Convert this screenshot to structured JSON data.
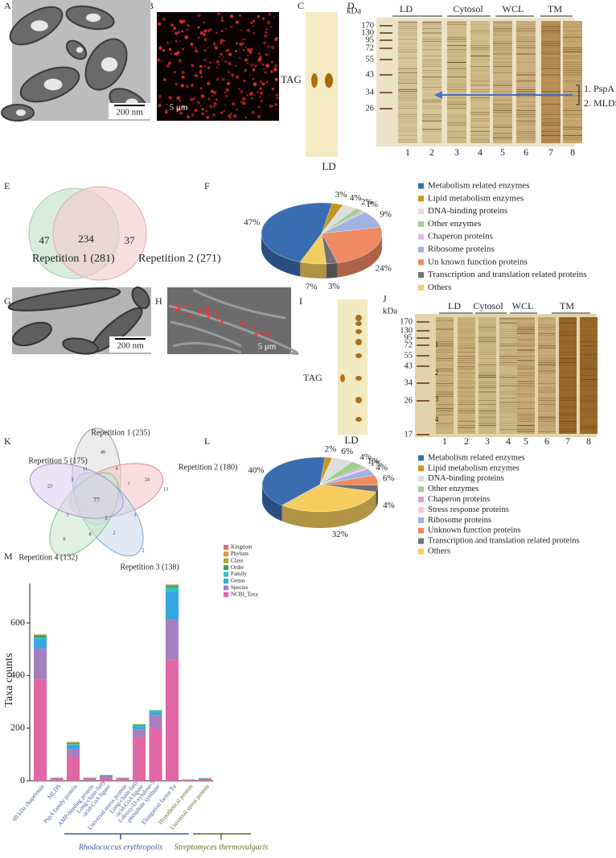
{
  "panel_labels": [
    "A",
    "B",
    "C",
    "D",
    "E",
    "F",
    "G",
    "H",
    "I",
    "J",
    "K",
    "L",
    "M"
  ],
  "panel_a": {
    "scale_bar": "200 nm"
  },
  "panel_b": {
    "scale_bar": "5 μm"
  },
  "panel_c": {
    "spot_label": "TAG",
    "lane_label": "LD"
  },
  "panel_d": {
    "unit": "kDa",
    "markers": [
      170,
      130,
      95,
      72,
      55,
      43,
      34,
      26
    ],
    "lane_groups": [
      "LD",
      "Cytosol",
      "WCL",
      "TM"
    ],
    "lanes": [
      1,
      2,
      3,
      4,
      5,
      6,
      7,
      8
    ],
    "annotations": [
      "1. PspA",
      "2. MLDS"
    ]
  },
  "panel_e": {
    "counts": [
      47,
      234,
      37
    ],
    "sets": [
      "Repetition 1 (281)",
      "Repetition 2 (271)"
    ]
  },
  "panel_g": {
    "scale_bar": "200 nm"
  },
  "panel_h": {
    "scale_bar": "5 μm"
  },
  "panel_i": {
    "spot_label": "TAG",
    "lane_label": "LD"
  },
  "panel_j": {
    "unit": "kDa",
    "markers": [
      170,
      130,
      95,
      72,
      55,
      43,
      34,
      26,
      17
    ],
    "lane_groups": [
      "LD",
      "Cytosol",
      "WCL",
      "TM"
    ],
    "lanes": [
      1,
      2,
      3,
      4,
      5,
      6,
      7,
      8
    ],
    "band_numbers": [
      1,
      2,
      3,
      4
    ]
  },
  "panel_k": {
    "sets": [
      "Repetition 1 (235)",
      "Repetition 2 (180)",
      "Repetition 3 (138)",
      "Repetition 4 (132)",
      "Repetition 5 (175)"
    ],
    "counts": [
      49,
      13,
      2,
      6,
      23,
      77,
      11,
      4,
      24,
      5,
      3,
      7,
      2,
      8,
      1,
      2
    ]
  },
  "chart_data": [
    {
      "type": "pie",
      "categories": [
        "Metabolism related enzymes",
        "Lipid metabolism enzymes",
        "DNA-binding proteins",
        "Other enzymes",
        "Chaperon proteins",
        "Ribosome proteins",
        "Un known function proteins",
        "Transcription and translation related proteins",
        "Others"
      ],
      "values": [
        47,
        3,
        4,
        2,
        1,
        9,
        24,
        3,
        7
      ],
      "value_labels": [
        "47%",
        "3%",
        "4%",
        "2%",
        "1%",
        "9%",
        "24%",
        "3%",
        "7%"
      ],
      "colors": [
        "#3a6db0",
        "#c8961e",
        "#dedede",
        "#9fcf8f",
        "#e4b8e4",
        "#9fb2e0",
        "#ef8a62",
        "#707070",
        "#f5cc60"
      ]
    },
    {
      "type": "pie",
      "categories": [
        "Metabolism related enzymes",
        "Lipid metabolism enzymes",
        "DNA-binding proteins",
        "Other enzymes",
        "Chaperon proteins",
        "Stress response proteins",
        "Ribosome proteins",
        "Unknown function proteins",
        "Transcription and translation related proteins",
        "Others"
      ],
      "values": [
        40,
        2,
        6,
        4,
        1,
        1,
        4,
        6,
        4,
        32
      ],
      "value_labels": [
        "40%",
        "2%",
        "6%",
        "4%",
        "1%",
        "1%",
        "4%",
        "6%",
        "4%",
        "32%"
      ],
      "colors": [
        "#3a6db0",
        "#c8961e",
        "#dedede",
        "#9fcf8f",
        "#c9a6d9",
        "#f4c6d6",
        "#9fb2e0",
        "#ef8a62",
        "#707070",
        "#f5cc60"
      ]
    },
    {
      "type": "bar",
      "stacked": true,
      "ylabel": "Taxa counts",
      "categories": [
        [
          "60 kDa chaperonin"
        ],
        [
          "MLDS"
        ],
        [
          "PspA family protein"
        ],
        [
          "AMP-binding protein"
        ],
        [
          "Long-chain-fatty",
          "-acid-CoA ligase"
        ],
        [
          "Universal stress protein"
        ],
        [
          "Long-chain-fatty",
          "-acid-CoA ligase"
        ],
        [
          "1-deoxy-D-xylulose-5",
          "-phosphate synthase"
        ],
        [
          "Elongation factor Tu"
        ],
        [
          "Hypothetical protein"
        ],
        [
          "Universal stress protein"
        ]
      ],
      "group_labels": [
        "Rhodococcus erythropolis",
        "Streptomyces thermovulgaris"
      ],
      "ylim": [
        0,
        750
      ],
      "yticks": [
        0,
        200,
        400,
        600
      ],
      "series": [
        {
          "name": "NCBI_Taxa",
          "color": "#e066a6",
          "values": [
            385,
            8,
            92,
            8,
            12,
            8,
            165,
            200,
            460,
            3,
            6
          ]
        },
        {
          "name": "Species",
          "color": "#a57fbf",
          "values": [
            118,
            2,
            30,
            2,
            5,
            2,
            30,
            50,
            155,
            1,
            2
          ]
        },
        {
          "name": "Genus",
          "color": "#35a8dd",
          "values": [
            37,
            1,
            15,
            1,
            3,
            1,
            12,
            12,
            105,
            1,
            1
          ]
        },
        {
          "name": "Family",
          "color": "#2ec4c6",
          "values": [
            5,
            0,
            3,
            0,
            1,
            0,
            3,
            3,
            15,
            0,
            0
          ]
        },
        {
          "name": "Order",
          "color": "#3aa35c",
          "values": [
            8,
            1,
            4,
            1,
            1,
            1,
            4,
            3,
            8,
            0,
            1
          ]
        },
        {
          "name": "Class",
          "color": "#a8a838",
          "values": [
            2,
            0,
            2,
            0,
            0,
            0,
            1,
            0,
            2,
            0,
            0
          ]
        },
        {
          "name": "Phylum",
          "color": "#e8923a",
          "values": [
            1,
            0,
            1,
            0,
            0,
            0,
            0,
            0,
            1,
            0,
            0
          ]
        },
        {
          "name": "Kingdom",
          "color": "#e8706b",
          "values": [
            1,
            0,
            1,
            0,
            0,
            0,
            0,
            0,
            1,
            0,
            0
          ]
        }
      ]
    }
  ]
}
